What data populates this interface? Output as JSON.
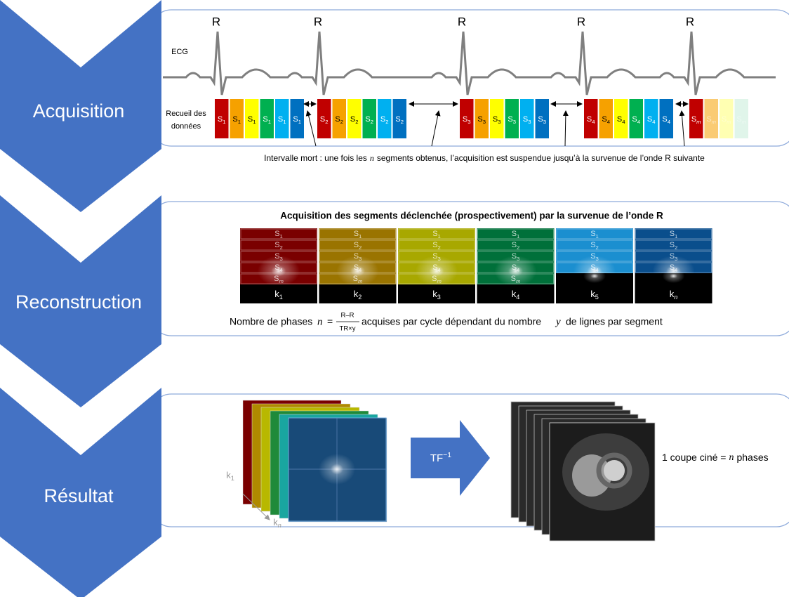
{
  "stages": [
    "Acquisition",
    "Reconstruction",
    "Résultat"
  ],
  "acquisition": {
    "ecg_label": "ECG",
    "r_peaks": [
      "R",
      "R",
      "R",
      "R",
      "R"
    ],
    "data_label": [
      "Recueil des",
      "données"
    ],
    "groups": [
      [
        [
          "S",
          "1"
        ],
        [
          "S",
          "1"
        ],
        [
          "S",
          "1"
        ],
        [
          "S",
          "1"
        ],
        [
          "S",
          "1"
        ],
        [
          "S",
          "1"
        ]
      ],
      [
        [
          "S",
          "2"
        ],
        [
          "S",
          "2"
        ],
        [
          "S",
          "2"
        ],
        [
          "S",
          "2"
        ],
        [
          "S",
          "2"
        ],
        [
          "S",
          "2"
        ]
      ],
      [
        [
          "S",
          "3"
        ],
        [
          "S",
          "3"
        ],
        [
          "S",
          "3"
        ],
        [
          "S",
          "3"
        ],
        [
          "S",
          "3"
        ],
        [
          "S",
          "3"
        ]
      ],
      [
        [
          "S",
          "4"
        ],
        [
          "S",
          "4"
        ],
        [
          "S",
          "4"
        ],
        [
          "S",
          "4"
        ],
        [
          "S",
          "4"
        ],
        [
          "S",
          "4"
        ]
      ],
      [
        [
          "S",
          "m"
        ],
        [
          "S",
          "m"
        ],
        [
          "S",
          "m"
        ],
        [
          "S",
          "m"
        ]
      ]
    ],
    "dead_time_note": {
      "before": "Intervalle mort : une fois les",
      "n": "n",
      "after": "segments obtenus, l’acquisition est suspendue jusqu’à la survenue de l’onde R suivante"
    }
  },
  "reconstruction": {
    "title": "Acquisition des segments déclenchée (prospectivement) par la survenue de l’onde R",
    "kspaces": [
      {
        "rows": [
          [
            "S",
            "1"
          ],
          [
            "S",
            "2"
          ],
          [
            "S",
            "3"
          ],
          [
            "S",
            "4"
          ],
          [
            "S",
            "m"
          ]
        ],
        "k": [
          "k",
          "1"
        ]
      },
      {
        "rows": [
          [
            "S",
            "1"
          ],
          [
            "S",
            "2"
          ],
          [
            "S",
            "3"
          ],
          [
            "S",
            "4"
          ],
          [
            "S",
            "m"
          ]
        ],
        "k": [
          "k",
          "2"
        ]
      },
      {
        "rows": [
          [
            "S",
            "1"
          ],
          [
            "S",
            "2"
          ],
          [
            "S",
            "3"
          ],
          [
            "S",
            "4"
          ],
          [
            "S",
            "m"
          ]
        ],
        "k": [
          "k",
          "3"
        ]
      },
      {
        "rows": [
          [
            "S",
            "1"
          ],
          [
            "S",
            "2"
          ],
          [
            "S",
            "3"
          ],
          [
            "S",
            "4"
          ],
          [
            "S",
            "m"
          ]
        ],
        "k": [
          "k",
          "4"
        ]
      },
      {
        "rows": [
          [
            "S",
            "1"
          ],
          [
            "S",
            "2"
          ],
          [
            "S",
            "3"
          ],
          [
            "S",
            "4"
          ]
        ],
        "k": [
          "k",
          "5"
        ]
      },
      {
        "rows": [
          [
            "S",
            "1"
          ],
          [
            "S",
            "2"
          ],
          [
            "S",
            "3"
          ],
          [
            "S",
            "4"
          ]
        ],
        "k": [
          "k",
          "n"
        ]
      }
    ],
    "formula": {
      "lead": "Nombre de phases",
      "n": "n",
      "eq": "=",
      "num": "R–R",
      "den": "TR×y",
      "tail1": "acquises par cycle dépendant du nombre",
      "y": "y",
      "tail2": "de lignes par segment"
    }
  },
  "result": {
    "transform": [
      "TF",
      "−1"
    ],
    "axis_k1": [
      "k",
      "1"
    ],
    "axis_kn": [
      "k",
      "n"
    ],
    "caption": {
      "lead": "1 coupe ciné =",
      "n": "n",
      "tail": "phases"
    }
  }
}
